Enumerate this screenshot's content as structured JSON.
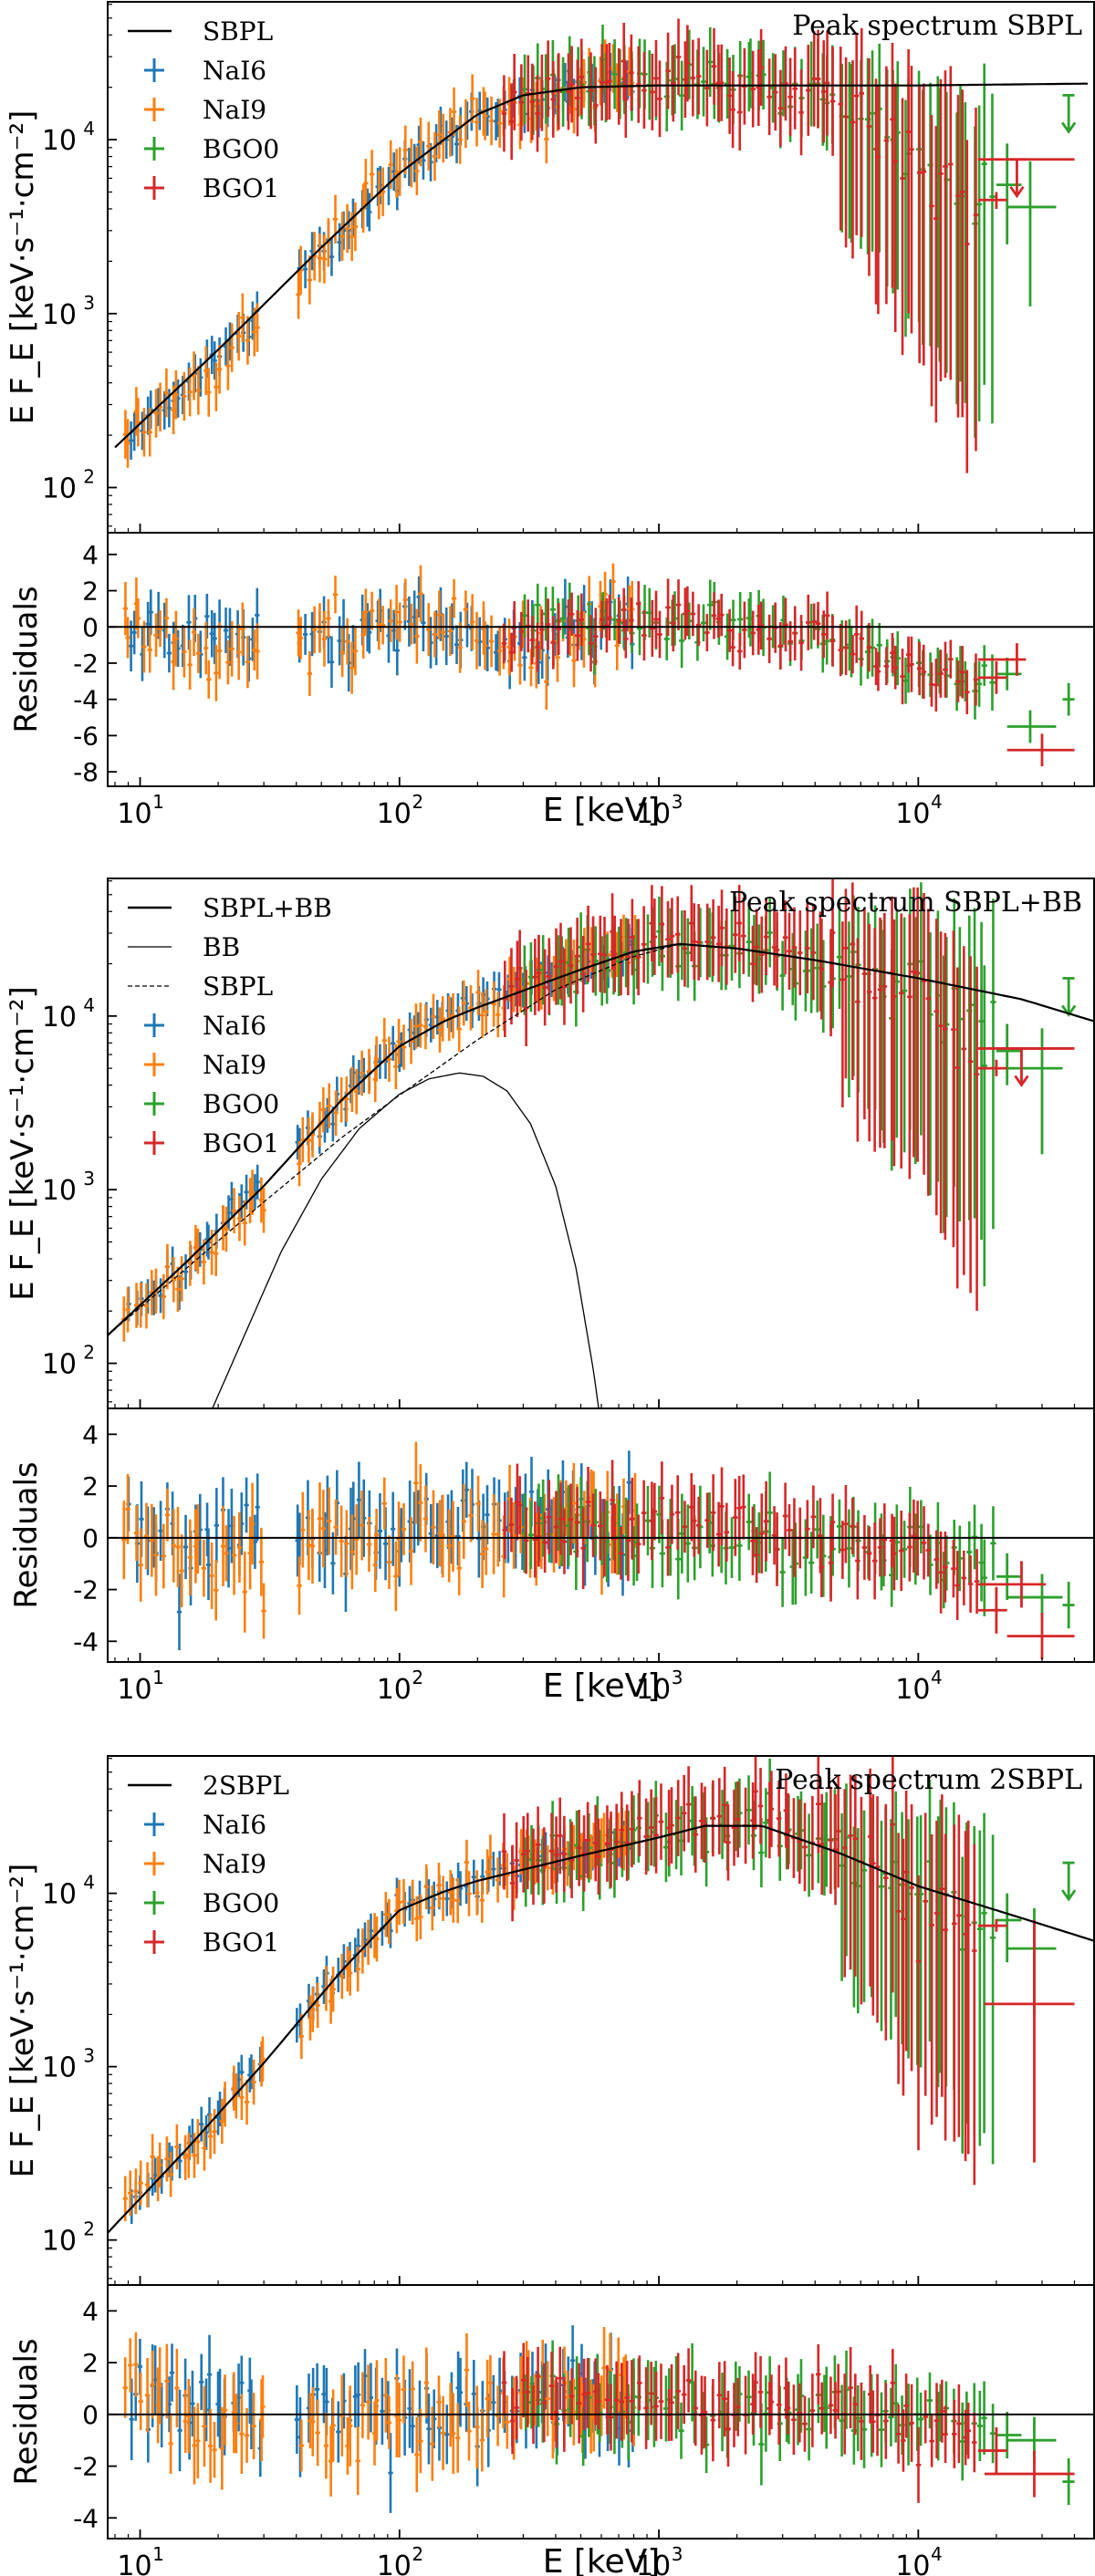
{
  "colors": {
    "NaI6": "#1f77b4",
    "NaI9": "#ff7f0e",
    "BGO0": "#2ca02c",
    "BGO1": "#d62728",
    "model": "#000000"
  },
  "shared_axes": {
    "xlabel": "E [keV]",
    "ylabel_main": "E F_E [keV·s⁻¹·cm⁻²]",
    "ylabel_resid": "Residuals",
    "x_scale": "log",
    "xlim": [
      7.5,
      48000
    ],
    "x_ticks": [
      {
        "value": 10,
        "base": "10",
        "exp": "1"
      },
      {
        "value": 100,
        "base": "10",
        "exp": "2"
      },
      {
        "value": 1000,
        "base": "10",
        "exp": "3"
      },
      {
        "value": 10000,
        "base": "10",
        "exp": "4"
      }
    ],
    "y_ticks_main": [
      {
        "value": 100,
        "base": "10",
        "exp": "2"
      },
      {
        "value": 1000,
        "base": "10",
        "exp": "3"
      },
      {
        "value": 10000,
        "base": "10",
        "exp": "4"
      }
    ]
  },
  "chart_data": [
    {
      "type": "scatter",
      "title": "Peak spectrum SBPL",
      "legend_position": "top-left",
      "legend": [
        {
          "label": "SBPL",
          "kind": "solid",
          "key": "model"
        },
        {
          "label": "NaI6",
          "kind": "errorbar",
          "key": "NaI6"
        },
        {
          "label": "NaI9",
          "kind": "errorbar",
          "key": "NaI9"
        },
        {
          "label": "BGO0",
          "kind": "errorbar",
          "key": "BGO0"
        },
        {
          "label": "BGO1",
          "kind": "errorbar",
          "key": "BGO1"
        }
      ],
      "ylim": [
        55,
        62000
      ],
      "resid_ylim": [
        -8.8,
        5.2
      ],
      "resid_ticks": [
        4,
        2,
        0,
        -2,
        -4,
        -6,
        -8
      ],
      "models": [
        {
          "name": "SBPL",
          "style": "solid",
          "width": 2.2,
          "x": [
            8,
            20,
            50,
            100,
            200,
            300,
            500,
            1000,
            3000,
            10000,
            45000
          ],
          "y": [
            170,
            620,
            2400,
            6400,
            14000,
            18000,
            20000,
            20500,
            20500,
            20500,
            21000
          ]
        }
      ],
      "series": [
        {
          "name": "NaI6",
          "x_range": [
            9,
            820
          ],
          "gap": [
            30,
            40
          ],
          "n": 95,
          "scatter": 0.12,
          "err": 0.11,
          "resid_amp": 1.5,
          "resid_trend": [
            [
              9,
              -0.2
            ],
            [
              100,
              -0.3
            ],
            [
              300,
              -1
            ],
            [
              820,
              0.5
            ]
          ]
        },
        {
          "name": "NaI9",
          "x_range": [
            8.5,
            820
          ],
          "gap": [
            30,
            40
          ],
          "n": 95,
          "scatter": 0.14,
          "err": 0.14,
          "resid_amp": 1.7,
          "resid_trend": [
            [
              8.5,
              0.4
            ],
            [
              20,
              -1.8
            ],
            [
              35,
              -1
            ],
            [
              100,
              0.5
            ],
            [
              300,
              -1.5
            ],
            [
              820,
              0.8
            ]
          ]
        },
        {
          "name": "BGO0",
          "x_range": [
            300,
            20000
          ],
          "n": 75,
          "scatter": 0.16,
          "err": 0.2,
          "resid_amp": 1.0,
          "resid_trend": [
            [
              300,
              0.5
            ],
            [
              3000,
              0
            ],
            [
              10000,
              -2
            ],
            [
              20000,
              -3
            ]
          ]
        },
        {
          "name": "BGO1",
          "x_range": [
            250,
            17000
          ],
          "n": 85,
          "scatter": 0.16,
          "err": 0.22,
          "resid_amp": 1.0,
          "resid_trend": [
            [
              250,
              -1
            ],
            [
              1000,
              0.5
            ],
            [
              5000,
              -0.5
            ],
            [
              10000,
              -2
            ],
            [
              17000,
              -3
            ]
          ]
        }
      ],
      "high_energy_points": [
        {
          "series": "BGO0",
          "x": 22000,
          "xlo": 20000,
          "xhi": 25000,
          "y": 5500,
          "ylo": 2500,
          "yhi": 9500,
          "resid": -2.6
        },
        {
          "series": "BGO0",
          "x": 27000,
          "xlo": 22000,
          "xhi": 34000,
          "y": 4100,
          "ylo": 1100,
          "yhi": 7500,
          "resid": -5.5
        },
        {
          "series": "BGO0",
          "x": 38000,
          "xlo": 36000,
          "xhi": 40000,
          "y": 18000,
          "upper_limit": true,
          "resid": -4.0
        },
        {
          "series": "BGO1",
          "x": 24000,
          "xlo": 17000,
          "xhi": 26000,
          "y": 7700,
          "ylo": 7200,
          "yhi": 8200,
          "upper_limit": true,
          "resid": -1.8
        },
        {
          "series": "BGO1",
          "x": 30000,
          "xlo": 22000,
          "xhi": 40000,
          "y": 7700,
          "upper_limit": false,
          "resid": -6.8
        },
        {
          "series": "BGO1",
          "x": 20000,
          "xlo": 17000,
          "xhi": 22000,
          "y": 4500,
          "ylo": 4000,
          "yhi": 5000,
          "resid": -2.8
        }
      ]
    },
    {
      "type": "scatter",
      "title": "Peak spectrum SBPL+BB",
      "legend_position": "top-left",
      "legend": [
        {
          "label": "SBPL+BB",
          "kind": "solid",
          "key": "model"
        },
        {
          "label": "BB",
          "kind": "thin",
          "key": "model"
        },
        {
          "label": "SBPL",
          "kind": "dashed",
          "key": "model"
        },
        {
          "label": "NaI6",
          "kind": "errorbar",
          "key": "NaI6"
        },
        {
          "label": "NaI9",
          "kind": "errorbar",
          "key": "NaI9"
        },
        {
          "label": "BGO0",
          "kind": "errorbar",
          "key": "BGO0"
        },
        {
          "label": "BGO1",
          "kind": "errorbar",
          "key": "BGO1"
        }
      ],
      "ylim": [
        55,
        62000
      ],
      "resid_ylim": [
        -4.8,
        5.0
      ],
      "resid_ticks": [
        4,
        2,
        0,
        -2,
        -4
      ],
      "models": [
        {
          "name": "SBPL+BB",
          "style": "solid",
          "width": 2.2,
          "x": [
            7.5,
            15,
            30,
            60,
            100,
            150,
            200,
            300,
            500,
            800,
            1200,
            2000,
            4000,
            10000,
            25000,
            48000
          ],
          "y": [
            145,
            380,
            1050,
            3300,
            6700,
            9400,
            11200,
            14000,
            18500,
            23500,
            26000,
            24500,
            21000,
            16500,
            12500,
            9300
          ]
        },
        {
          "name": "BB",
          "style": "thin",
          "width": 1.3,
          "x": [
            19,
            25,
            35,
            50,
            70,
            100,
            130,
            170,
            210,
            260,
            320,
            400,
            480,
            560,
            620
          ],
          "y": [
            55,
            140,
            440,
            1150,
            2250,
            3550,
            4350,
            4700,
            4500,
            3700,
            2400,
            1050,
            350,
            90,
            30
          ]
        },
        {
          "name": "SBPL",
          "style": "dashed",
          "width": 1.3,
          "x": [
            7.5,
            15,
            30,
            60,
            100,
            200,
            400,
            800,
            1200,
            2000
          ],
          "y": [
            145,
            350,
            850,
            2000,
            3500,
            7300,
            14200,
            22000,
            26000,
            24500
          ]
        }
      ],
      "series": [
        {
          "name": "NaI6",
          "x_range": [
            9,
            820
          ],
          "gap": [
            30,
            40
          ],
          "n": 95,
          "scatter": 0.11,
          "err": 0.1,
          "resid_amp": 1.4,
          "resid_trend": [
            [
              9,
              0.2
            ],
            [
              820,
              0.5
            ]
          ]
        },
        {
          "name": "NaI9",
          "x_range": [
            8.5,
            820
          ],
          "gap": [
            30,
            40
          ],
          "n": 95,
          "scatter": 0.13,
          "err": 0.13,
          "resid_amp": 1.5,
          "resid_trend": [
            [
              8.5,
              0.5
            ],
            [
              20,
              -0.7
            ],
            [
              100,
              0.4
            ],
            [
              820,
              0.4
            ]
          ]
        },
        {
          "name": "BGO0",
          "x_range": [
            300,
            20000
          ],
          "n": 75,
          "scatter": 0.16,
          "err": 0.2,
          "resid_amp": 1.0,
          "resid_trend": [
            [
              300,
              0.3
            ],
            [
              10000,
              -0.5
            ],
            [
              20000,
              -1.5
            ]
          ]
        },
        {
          "name": "BGO1",
          "x_range": [
            250,
            17000
          ],
          "n": 85,
          "scatter": 0.16,
          "err": 0.22,
          "resid_amp": 1.0,
          "resid_trend": [
            [
              250,
              0.5
            ],
            [
              3000,
              0.5
            ],
            [
              10000,
              -0.8
            ],
            [
              17000,
              -2
            ]
          ]
        }
      ],
      "high_energy_points": [
        {
          "series": "BGO0",
          "x": 22000,
          "xlo": 20000,
          "xhi": 25000,
          "y": 6300,
          "ylo": 4000,
          "yhi": 9000,
          "resid": -1.5
        },
        {
          "series": "BGO0",
          "x": 30000,
          "xlo": 22000,
          "xhi": 36000,
          "y": 5000,
          "ylo": 1600,
          "yhi": 8500,
          "resid": -2.3
        },
        {
          "series": "BGO0",
          "x": 38000,
          "xlo": 36000,
          "xhi": 40000,
          "y": 16500,
          "upper_limit": true,
          "resid": -2.6
        },
        {
          "series": "BGO1",
          "x": 25000,
          "xlo": 17000,
          "xhi": 31000,
          "y": 6500,
          "upper_limit": true,
          "resid": -1.8
        },
        {
          "series": "BGO1",
          "x": 30000,
          "xlo": 22000,
          "xhi": 40000,
          "y": 6500,
          "upper_limit": false,
          "resid": -3.8
        },
        {
          "series": "BGO1",
          "x": 20000,
          "xlo": 17000,
          "xhi": 22000,
          "y": 5000,
          "ylo": 4500,
          "yhi": 5600,
          "resid": -2.8
        }
      ]
    },
    {
      "type": "scatter",
      "title": "Peak spectrum 2SBPL",
      "legend_position": "top-left",
      "legend": [
        {
          "label": "2SBPL",
          "kind": "solid",
          "key": "model"
        },
        {
          "label": "NaI6",
          "kind": "errorbar",
          "key": "NaI6"
        },
        {
          "label": "NaI9",
          "kind": "errorbar",
          "key": "NaI9"
        },
        {
          "label": "BGO0",
          "kind": "errorbar",
          "key": "BGO0"
        },
        {
          "label": "BGO1",
          "kind": "errorbar",
          "key": "BGO1"
        }
      ],
      "ylim": [
        55,
        62000
      ],
      "resid_ylim": [
        -4.8,
        5.0
      ],
      "resid_ticks": [
        4,
        2,
        0,
        -2,
        -4
      ],
      "models": [
        {
          "name": "2SBPL",
          "style": "solid",
          "width": 2.2,
          "x": [
            7.5,
            15,
            30,
            60,
            100,
            150,
            200,
            300,
            500,
            1000,
            1500,
            2500,
            5000,
            10000,
            25000,
            48000
          ],
          "y": [
            110,
            330,
            1050,
            3600,
            8000,
            10300,
            11800,
            13700,
            16500,
            21000,
            24500,
            24500,
            17000,
            11000,
            7200,
            5300
          ]
        }
      ],
      "series": [
        {
          "name": "NaI6",
          "x_range": [
            9,
            820
          ],
          "gap": [
            30,
            40
          ],
          "n": 95,
          "scatter": 0.11,
          "err": 0.1,
          "resid_amp": 1.4,
          "resid_trend": [
            [
              9,
              0.3
            ],
            [
              820,
              0.3
            ]
          ]
        },
        {
          "name": "NaI9",
          "x_range": [
            8.5,
            820
          ],
          "gap": [
            30,
            40
          ],
          "n": 95,
          "scatter": 0.13,
          "err": 0.13,
          "resid_amp": 1.5,
          "resid_trend": [
            [
              8.5,
              0.6
            ],
            [
              20,
              -0.8
            ],
            [
              100,
              0.4
            ],
            [
              820,
              0.3
            ]
          ]
        },
        {
          "name": "BGO0",
          "x_range": [
            300,
            20000
          ],
          "n": 75,
          "scatter": 0.16,
          "err": 0.2,
          "resid_amp": 1.0,
          "resid_trend": [
            [
              300,
              0.3
            ],
            [
              10000,
              0
            ],
            [
              20000,
              -0.8
            ]
          ]
        },
        {
          "name": "BGO1",
          "x_range": [
            250,
            17000
          ],
          "n": 85,
          "scatter": 0.16,
          "err": 0.22,
          "resid_amp": 1.0,
          "resid_trend": [
            [
              250,
              0.4
            ],
            [
              3000,
              0.4
            ],
            [
              10000,
              -0.3
            ],
            [
              17000,
              -1.2
            ]
          ]
        }
      ],
      "high_energy_points": [
        {
          "series": "BGO0",
          "x": 22000,
          "xlo": 20000,
          "xhi": 25000,
          "y": 7000,
          "ylo": 4000,
          "yhi": 10000,
          "resid": -0.8
        },
        {
          "series": "BGO0",
          "x": 28000,
          "xlo": 22000,
          "xhi": 34000,
          "y": 4800,
          "ylo": 2000,
          "yhi": 8200,
          "resid": -1.0
        },
        {
          "series": "BGO0",
          "x": 38000,
          "xlo": 36000,
          "xhi": 40000,
          "y": 15000,
          "upper_limit": true,
          "resid": -2.6
        },
        {
          "series": "BGO1",
          "x": 28000,
          "xlo": 18000,
          "xhi": 40000,
          "y": 2300,
          "ylo": 280,
          "yhi": 7000,
          "resid": -2.3
        },
        {
          "series": "BGO1",
          "x": 20000,
          "xlo": 17000,
          "xhi": 22000,
          "y": 6500,
          "ylo": 6000,
          "yhi": 7100,
          "resid": -1.4
        }
      ]
    }
  ]
}
